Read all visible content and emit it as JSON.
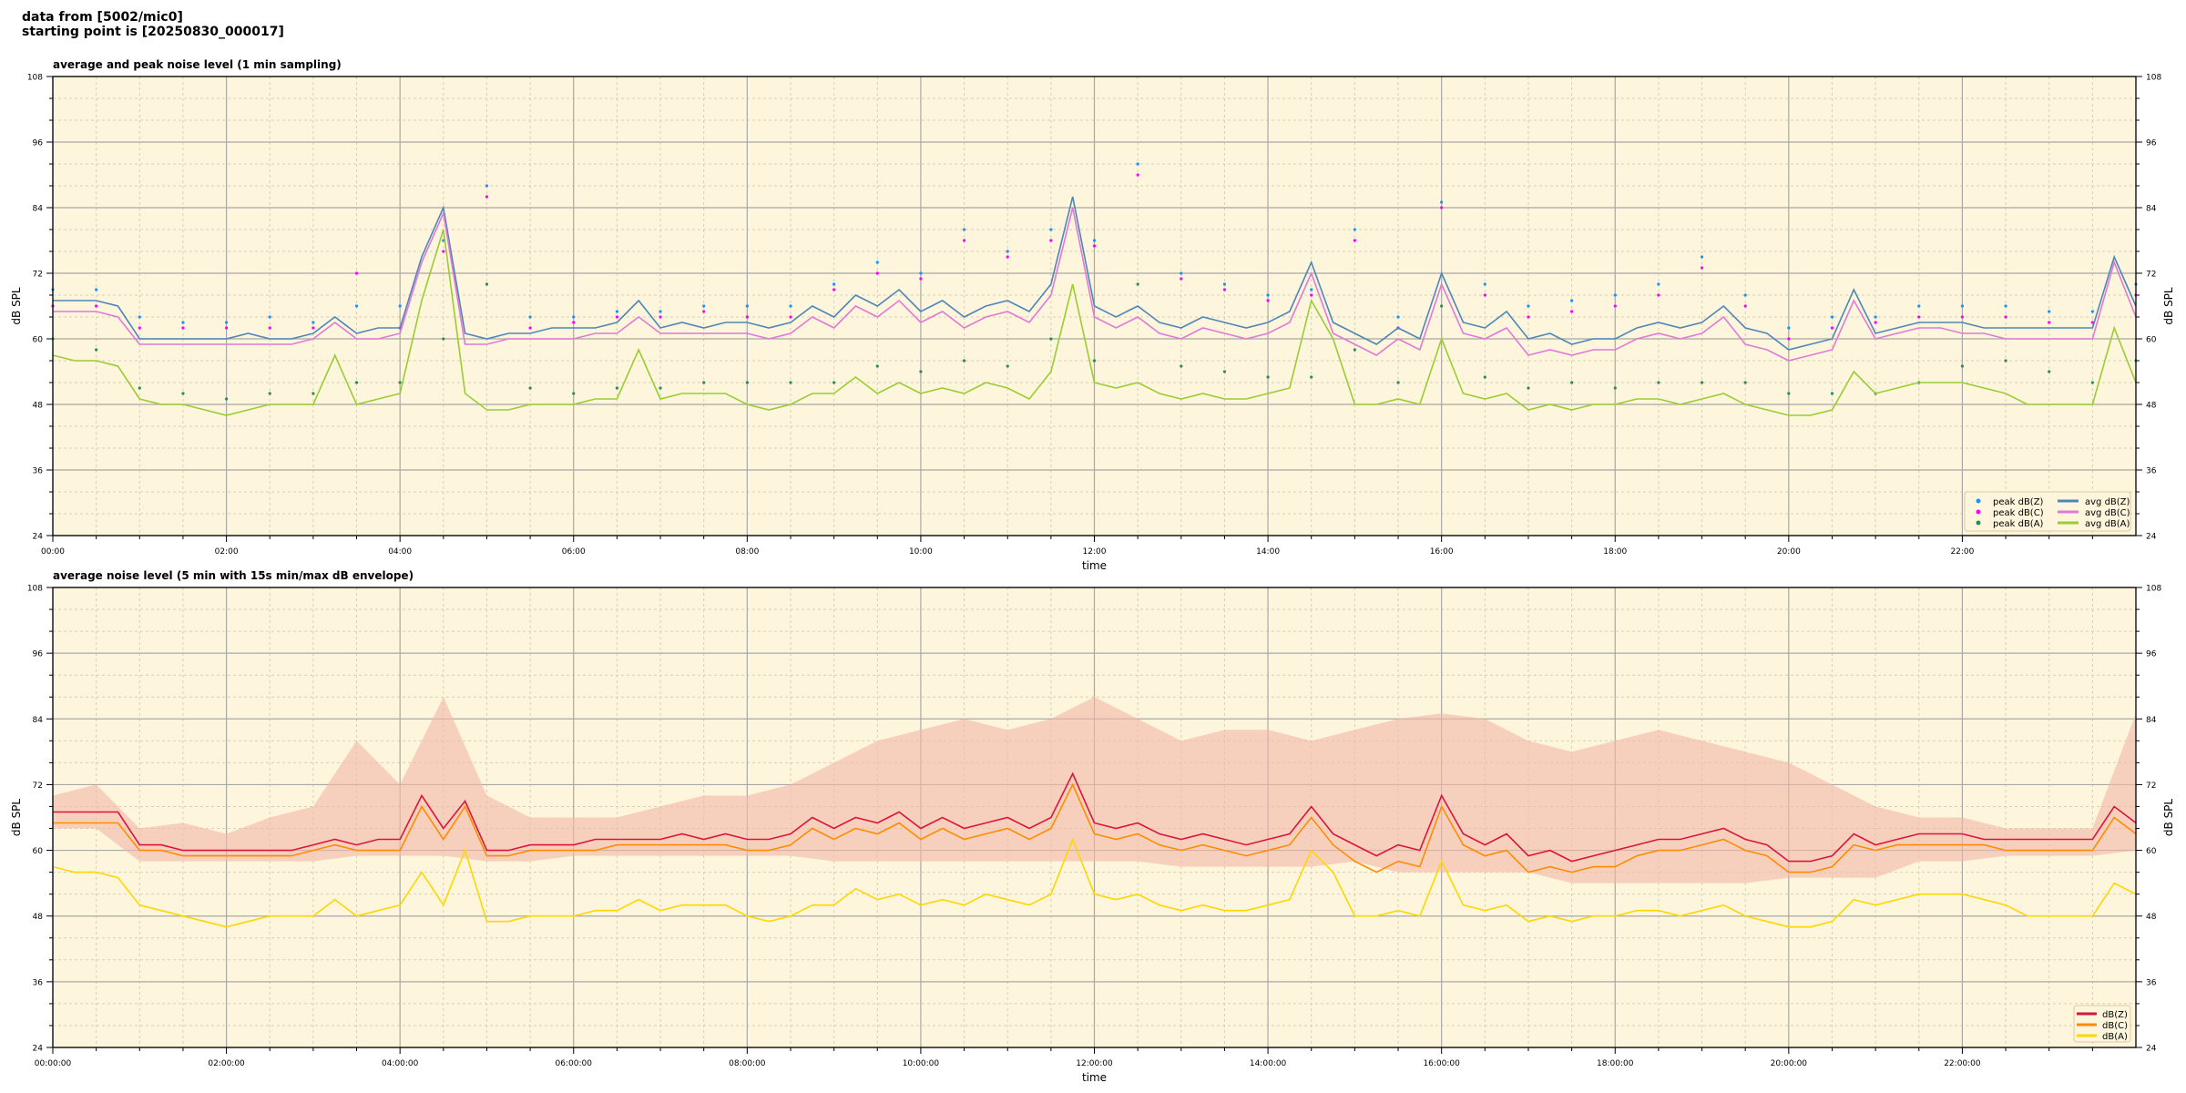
{
  "header": {
    "line1": "data from [5002/mic0]",
    "line2": "starting point is [20250830_000017]"
  },
  "chart_data": [
    {
      "type": "line",
      "title": "average and peak noise level (1 min sampling)",
      "xlabel": "time",
      "ylabel": "dB SPL",
      "ylabel_right": "dB SPL",
      "xlim_hours": [
        0,
        24
      ],
      "ylim": [
        24,
        108
      ],
      "yticks": [
        24,
        36,
        48,
        60,
        72,
        84,
        96,
        108
      ],
      "xtick_labels": [
        "00:00",
        "02:00",
        "04:00",
        "06:00",
        "08:00",
        "10:00",
        "12:00",
        "14:00",
        "16:00",
        "18:00",
        "20:00",
        "22:00"
      ],
      "grid": true,
      "legend_position": "bottom-right",
      "x_step_hours": 0.25,
      "series": [
        {
          "name": "avg dB(Z)",
          "color": "#4f86b8",
          "kind": "line",
          "values": [
            67,
            67,
            67,
            66,
            60,
            60,
            60,
            60,
            60,
            61,
            60,
            60,
            61,
            64,
            61,
            62,
            62,
            75,
            84,
            61,
            60,
            61,
            61,
            62,
            62,
            62,
            63,
            67,
            62,
            63,
            62,
            63,
            63,
            62,
            63,
            66,
            64,
            68,
            66,
            69,
            65,
            67,
            64,
            66,
            67,
            65,
            70,
            86,
            66,
            64,
            66,
            63,
            62,
            64,
            63,
            62,
            63,
            65,
            74,
            63,
            61,
            59,
            62,
            60,
            72,
            63,
            62,
            65,
            60,
            61,
            59,
            60,
            60,
            62,
            63,
            62,
            63,
            66,
            62,
            61,
            58,
            59,
            60,
            69,
            61,
            62,
            63,
            63,
            63,
            62,
            62,
            62,
            62,
            62,
            62,
            75,
            66
          ]
        },
        {
          "name": "avg dB(C)",
          "color": "#e07ad6",
          "kind": "line",
          "values": [
            65,
            65,
            65,
            64,
            59,
            59,
            59,
            59,
            59,
            59,
            59,
            59,
            60,
            63,
            60,
            60,
            61,
            74,
            83,
            59,
            59,
            60,
            60,
            60,
            60,
            61,
            61,
            64,
            61,
            61,
            61,
            61,
            61,
            60,
            61,
            64,
            62,
            66,
            64,
            67,
            63,
            65,
            62,
            64,
            65,
            63,
            68,
            84,
            64,
            62,
            64,
            61,
            60,
            62,
            61,
            60,
            61,
            63,
            72,
            61,
            59,
            57,
            60,
            58,
            70,
            61,
            60,
            62,
            57,
            58,
            57,
            58,
            58,
            60,
            61,
            60,
            61,
            64,
            59,
            58,
            56,
            57,
            58,
            67,
            60,
            61,
            62,
            62,
            61,
            61,
            60,
            60,
            60,
            60,
            60,
            74,
            64
          ]
        },
        {
          "name": "avg dB(A)",
          "color": "#9acd32",
          "kind": "line",
          "values": [
            57,
            56,
            56,
            55,
            49,
            48,
            48,
            47,
            46,
            47,
            48,
            48,
            48,
            57,
            48,
            49,
            50,
            67,
            80,
            50,
            47,
            47,
            48,
            48,
            48,
            49,
            49,
            58,
            49,
            50,
            50,
            50,
            48,
            47,
            48,
            50,
            50,
            53,
            50,
            52,
            50,
            51,
            50,
            52,
            51,
            49,
            54,
            70,
            52,
            51,
            52,
            50,
            49,
            50,
            49,
            49,
            50,
            51,
            67,
            60,
            48,
            48,
            49,
            48,
            60,
            50,
            49,
            50,
            47,
            48,
            47,
            48,
            48,
            49,
            49,
            48,
            49,
            50,
            48,
            47,
            46,
            46,
            47,
            54,
            50,
            51,
            52,
            52,
            52,
            51,
            50,
            48,
            48,
            48,
            48,
            62,
            52
          ]
        }
      ],
      "peaks_step_hours": 0.5,
      "peaks": [
        {
          "name": "peak dB(Z)",
          "color": "#1e90ff",
          "kind": "scatter",
          "values": [
            69,
            69,
            64,
            63,
            63,
            64,
            63,
            66,
            66,
            78,
            88,
            64,
            64,
            65,
            65,
            66,
            66,
            66,
            70,
            74,
            72,
            80,
            76,
            80,
            78,
            92,
            72,
            70,
            68,
            69,
            80,
            64,
            85,
            70,
            66,
            67,
            68,
            70,
            75,
            68,
            62,
            64,
            64,
            66,
            66,
            66,
            65,
            65,
            70
          ]
        },
        {
          "name": "peak dB(C)",
          "color": "#ff00ff",
          "kind": "scatter",
          "values": [
            66,
            66,
            62,
            62,
            62,
            62,
            62,
            72,
            62,
            76,
            86,
            62,
            63,
            64,
            64,
            65,
            64,
            64,
            69,
            72,
            71,
            78,
            75,
            78,
            77,
            90,
            71,
            69,
            67,
            68,
            78,
            62,
            84,
            68,
            64,
            65,
            66,
            68,
            73,
            66,
            60,
            62,
            63,
            64,
            64,
            64,
            63,
            63,
            68
          ]
        },
        {
          "name": "peak dB(A)",
          "color": "#2e8b57",
          "kind": "scatter",
          "values": [
            60,
            58,
            51,
            50,
            49,
            50,
            50,
            52,
            52,
            60,
            70,
            51,
            50,
            51,
            51,
            52,
            52,
            52,
            52,
            55,
            54,
            56,
            55,
            60,
            56,
            70,
            55,
            54,
            53,
            53,
            58,
            52,
            66,
            53,
            51,
            52,
            51,
            52,
            52,
            52,
            50,
            50,
            50,
            52,
            55,
            56,
            54,
            52,
            56
          ]
        }
      ]
    },
    {
      "type": "line",
      "title": "average noise level (5 min with 15s min/max dB envelope)",
      "xlabel": "time",
      "ylabel": "dB SPL",
      "ylabel_right": "dB SPL",
      "xlim_hours": [
        0,
        24
      ],
      "ylim": [
        24,
        108
      ],
      "yticks": [
        24,
        36,
        48,
        60,
        72,
        84,
        96,
        108
      ],
      "xtick_labels": [
        "00:00:00",
        "02:00:00",
        "04:00:00",
        "06:00:00",
        "08:00:00",
        "10:00:00",
        "12:00:00",
        "14:00:00",
        "16:00:00",
        "18:00:00",
        "20:00:00",
        "22:00:00"
      ],
      "grid": true,
      "legend_position": "bottom-right",
      "x_step_hours": 0.25,
      "series": [
        {
          "name": "dB(Z)",
          "color": "#dc143c",
          "kind": "line",
          "values": [
            67,
            67,
            67,
            67,
            61,
            61,
            60,
            60,
            60,
            60,
            60,
            60,
            61,
            62,
            61,
            62,
            62,
            70,
            64,
            69,
            60,
            60,
            61,
            61,
            61,
            62,
            62,
            62,
            62,
            63,
            62,
            63,
            62,
            62,
            63,
            66,
            64,
            66,
            65,
            67,
            64,
            66,
            64,
            65,
            66,
            64,
            66,
            74,
            65,
            64,
            65,
            63,
            62,
            63,
            62,
            61,
            62,
            63,
            68,
            63,
            61,
            59,
            61,
            60,
            70,
            63,
            61,
            63,
            59,
            60,
            58,
            59,
            60,
            61,
            62,
            62,
            63,
            64,
            62,
            61,
            58,
            58,
            59,
            63,
            61,
            62,
            63,
            63,
            63,
            62,
            62,
            62,
            62,
            62,
            62,
            68,
            65
          ]
        },
        {
          "name": "dB(C)",
          "color": "#ff8c00",
          "kind": "line",
          "values": [
            65,
            65,
            65,
            65,
            60,
            60,
            59,
            59,
            59,
            59,
            59,
            59,
            60,
            61,
            60,
            60,
            60,
            68,
            62,
            68,
            59,
            59,
            60,
            60,
            60,
            60,
            61,
            61,
            61,
            61,
            61,
            61,
            60,
            60,
            61,
            64,
            62,
            64,
            63,
            65,
            62,
            64,
            62,
            63,
            64,
            62,
            64,
            72,
            63,
            62,
            63,
            61,
            60,
            61,
            60,
            59,
            60,
            61,
            66,
            61,
            58,
            56,
            58,
            57,
            68,
            61,
            59,
            60,
            56,
            57,
            56,
            57,
            57,
            59,
            60,
            60,
            61,
            62,
            60,
            59,
            56,
            56,
            57,
            61,
            60,
            61,
            61,
            61,
            61,
            61,
            60,
            60,
            60,
            60,
            60,
            66,
            63
          ]
        },
        {
          "name": "dB(A)",
          "color": "#ffd700",
          "kind": "line",
          "values": [
            57,
            56,
            56,
            55,
            50,
            49,
            48,
            47,
            46,
            47,
            48,
            48,
            48,
            51,
            48,
            49,
            50,
            56,
            50,
            60,
            47,
            47,
            48,
            48,
            48,
            49,
            49,
            51,
            49,
            50,
            50,
            50,
            48,
            47,
            48,
            50,
            50,
            53,
            51,
            52,
            50,
            51,
            50,
            52,
            51,
            50,
            52,
            62,
            52,
            51,
            52,
            50,
            49,
            50,
            49,
            49,
            50,
            51,
            60,
            56,
            48,
            48,
            49,
            48,
            58,
            50,
            49,
            50,
            47,
            48,
            47,
            48,
            48,
            49,
            49,
            48,
            49,
            50,
            48,
            47,
            46,
            46,
            47,
            51,
            50,
            51,
            52,
            52,
            52,
            51,
            50,
            48,
            48,
            48,
            48,
            54,
            52
          ]
        }
      ],
      "envelope": {
        "name": "dB(Z) 15s min/max envelope",
        "color": "#f4b8a8",
        "step_hours": 0.5,
        "max": [
          70,
          72,
          64,
          65,
          63,
          66,
          68,
          80,
          72,
          88,
          70,
          66,
          66,
          66,
          68,
          70,
          70,
          72,
          76,
          80,
          82,
          84,
          82,
          84,
          88,
          84,
          80,
          82,
          82,
          80,
          82,
          84,
          85,
          84,
          80,
          78,
          80,
          82,
          80,
          78,
          76,
          72,
          68,
          66,
          66,
          64,
          64,
          64,
          85
        ],
        "min": [
          64,
          64,
          58,
          58,
          58,
          58,
          58,
          59,
          59,
          59,
          58,
          58,
          59,
          59,
          59,
          59,
          59,
          59,
          58,
          58,
          58,
          58,
          58,
          58,
          58,
          58,
          57,
          57,
          57,
          57,
          58,
          56,
          56,
          56,
          56,
          54,
          54,
          54,
          54,
          54,
          55,
          55,
          55,
          58,
          58,
          59,
          59,
          59,
          60
        ]
      }
    }
  ]
}
